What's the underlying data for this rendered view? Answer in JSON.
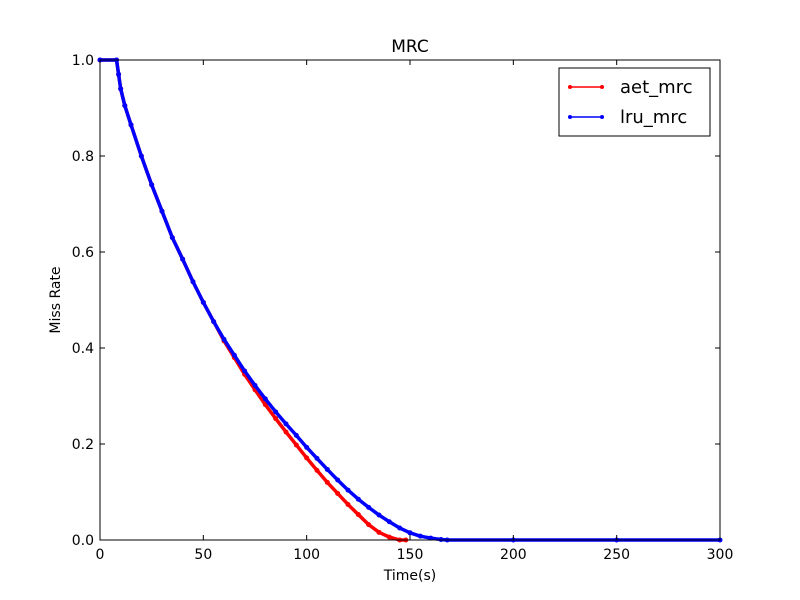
{
  "chart_data": {
    "type": "line",
    "title": "MRC",
    "xlabel": "Time(s)",
    "ylabel": "Miss Rate",
    "xlim": [
      0,
      300
    ],
    "ylim": [
      0,
      1.0
    ],
    "x_ticks": [
      0,
      50,
      100,
      150,
      200,
      250,
      300
    ],
    "y_ticks": [
      0.0,
      0.2,
      0.4,
      0.6,
      0.8,
      1.0
    ],
    "x_tick_labels": [
      "0",
      "50",
      "100",
      "150",
      "200",
      "250",
      "300"
    ],
    "y_tick_labels": [
      "0.0",
      "0.2",
      "0.4",
      "0.6",
      "0.8",
      "1.0"
    ],
    "grid": false,
    "legend_position": "top-right",
    "series": [
      {
        "name": "aet_mrc",
        "color": "#ff0000",
        "marker": "dot",
        "points": [
          [
            0,
            1.0
          ],
          [
            8,
            1.0
          ],
          [
            9,
            0.97
          ],
          [
            10,
            0.94
          ],
          [
            12,
            0.905
          ],
          [
            15,
            0.865
          ],
          [
            20,
            0.8
          ],
          [
            25,
            0.74
          ],
          [
            30,
            0.685
          ],
          [
            35,
            0.63
          ],
          [
            40,
            0.585
          ],
          [
            45,
            0.538
          ],
          [
            50,
            0.495
          ],
          [
            55,
            0.455
          ],
          [
            60,
            0.415
          ],
          [
            65,
            0.38
          ],
          [
            70,
            0.345
          ],
          [
            75,
            0.313
          ],
          [
            80,
            0.282
          ],
          [
            85,
            0.253
          ],
          [
            90,
            0.225
          ],
          [
            95,
            0.198
          ],
          [
            100,
            0.171
          ],
          [
            105,
            0.145
          ],
          [
            110,
            0.12
          ],
          [
            115,
            0.097
          ],
          [
            120,
            0.074
          ],
          [
            125,
            0.053
          ],
          [
            130,
            0.032
          ],
          [
            135,
            0.016
          ],
          [
            140,
            0.006
          ],
          [
            145,
            0.0
          ],
          [
            148,
            0.0
          ]
        ]
      },
      {
        "name": "lru_mrc",
        "color": "#0000ff",
        "marker": "dot",
        "points": [
          [
            0,
            1.0
          ],
          [
            8,
            1.0
          ],
          [
            9,
            0.97
          ],
          [
            10,
            0.94
          ],
          [
            12,
            0.905
          ],
          [
            15,
            0.865
          ],
          [
            20,
            0.8
          ],
          [
            25,
            0.74
          ],
          [
            30,
            0.685
          ],
          [
            35,
            0.63
          ],
          [
            40,
            0.585
          ],
          [
            45,
            0.538
          ],
          [
            50,
            0.495
          ],
          [
            55,
            0.455
          ],
          [
            60,
            0.418
          ],
          [
            65,
            0.385
          ],
          [
            70,
            0.352
          ],
          [
            75,
            0.322
          ],
          [
            80,
            0.294
          ],
          [
            85,
            0.267
          ],
          [
            90,
            0.242
          ],
          [
            95,
            0.218
          ],
          [
            100,
            0.193
          ],
          [
            105,
            0.17
          ],
          [
            110,
            0.147
          ],
          [
            115,
            0.125
          ],
          [
            120,
            0.104
          ],
          [
            125,
            0.085
          ],
          [
            130,
            0.068
          ],
          [
            135,
            0.052
          ],
          [
            140,
            0.038
          ],
          [
            145,
            0.025
          ],
          [
            150,
            0.015
          ],
          [
            155,
            0.008
          ],
          [
            160,
            0.004
          ],
          [
            165,
            0.001
          ],
          [
            168,
            0.0
          ],
          [
            200,
            0.0
          ],
          [
            250,
            0.0
          ],
          [
            300,
            0.0
          ]
        ]
      }
    ]
  }
}
